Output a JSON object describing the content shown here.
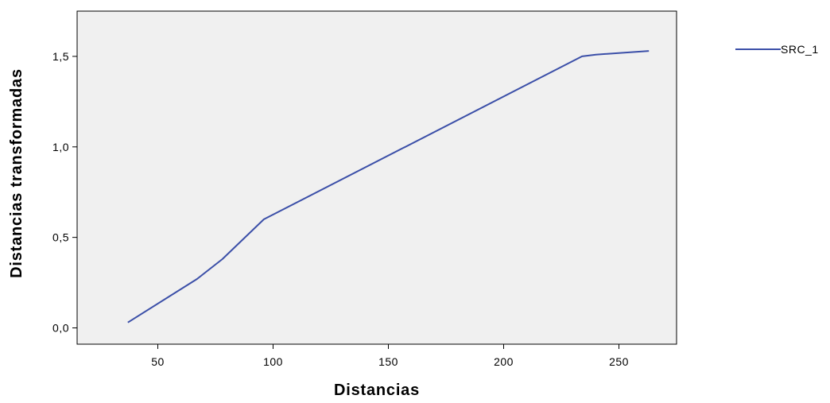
{
  "chart_data": {
    "type": "line",
    "title": "",
    "xlabel": "Distancias",
    "ylabel": "Distancias transformadas",
    "xlim": [
      15,
      275
    ],
    "ylim": [
      -0.09,
      1.75
    ],
    "x_ticks": [
      50,
      100,
      150,
      200,
      250
    ],
    "x_tick_labels": [
      "50",
      "100",
      "150",
      "200",
      "250"
    ],
    "y_ticks": [
      0.0,
      0.5,
      1.0,
      1.5
    ],
    "y_tick_labels": [
      "0,0",
      "0,5",
      "1,0",
      "1,5"
    ],
    "grid": false,
    "legend_position": "top-right, outside plot",
    "plot_background": "#f0f0f0",
    "series": [
      {
        "name": "SRC_1",
        "color": "#3b4fa8",
        "x": [
          37,
          67,
          78,
          96,
          234,
          240,
          263
        ],
        "y": [
          0.03,
          0.27,
          0.38,
          0.6,
          1.5,
          1.51,
          1.53
        ]
      }
    ]
  }
}
